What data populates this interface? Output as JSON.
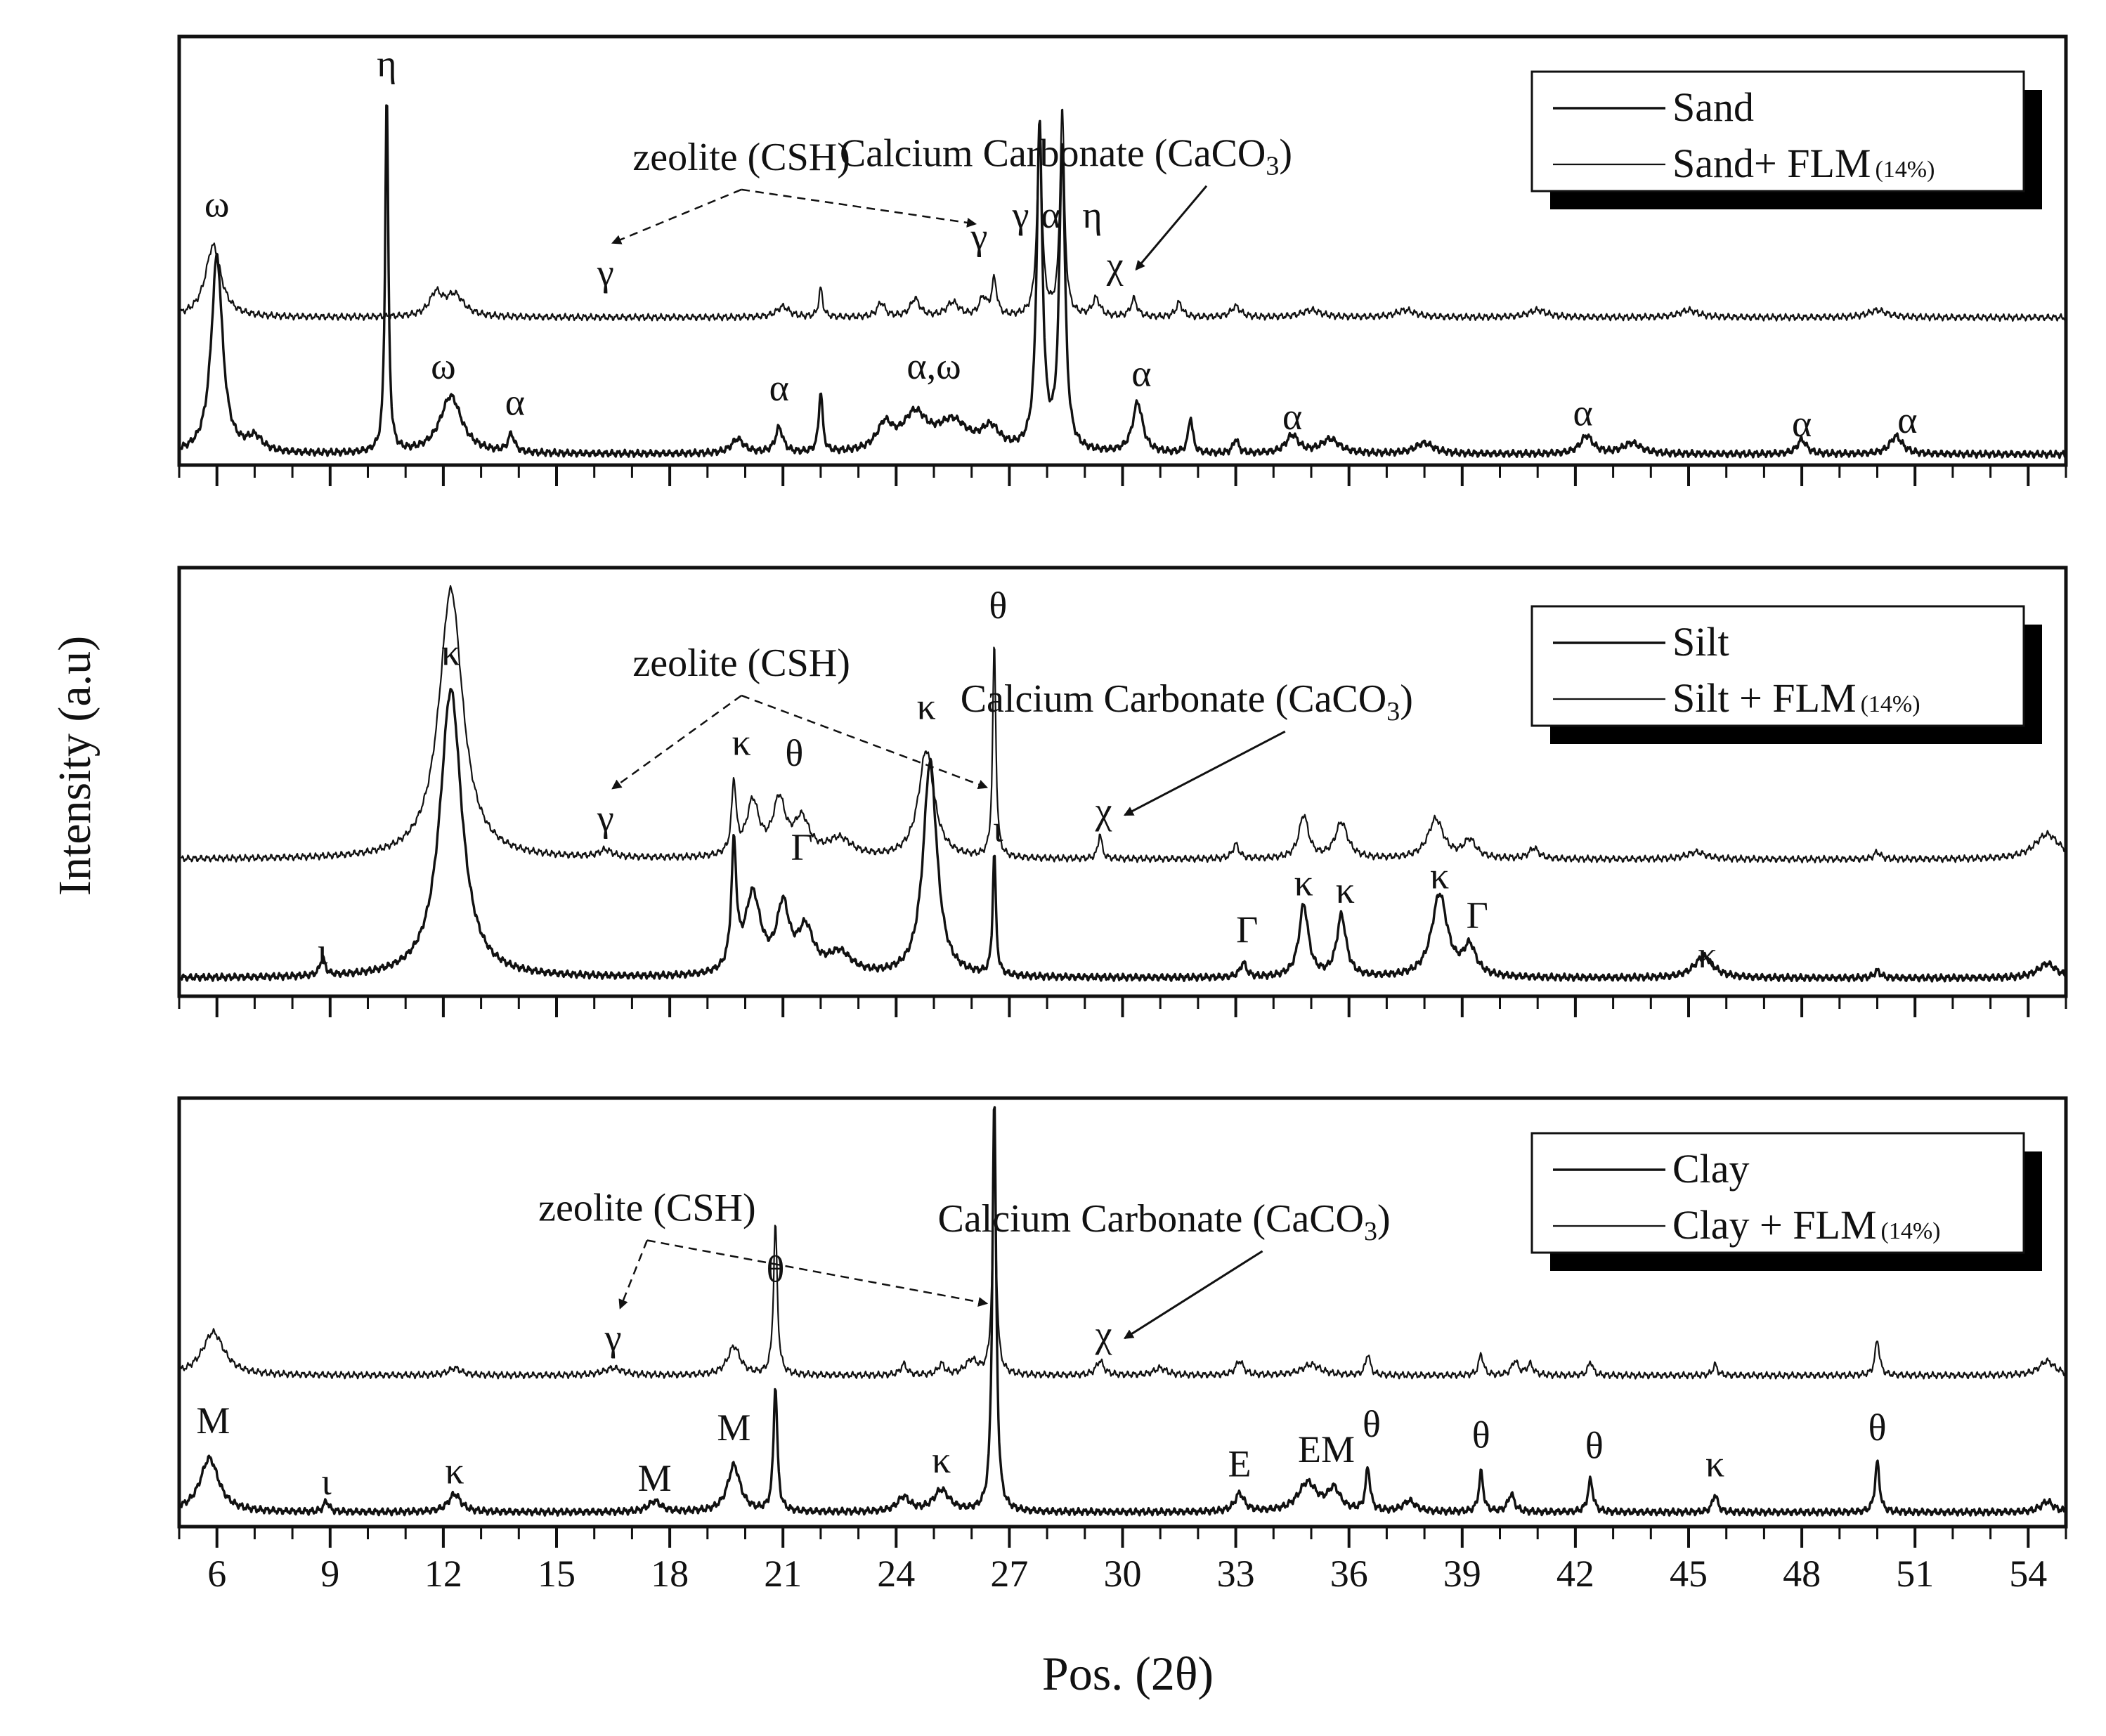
{
  "x_axis": {
    "label": "Pos. (2θ)",
    "range": [
      5,
      55
    ],
    "ticks": [
      "6",
      "9",
      "12",
      "15",
      "18",
      "21",
      "24",
      "27",
      "30",
      "33",
      "36",
      "39",
      "42",
      "45",
      "48",
      "51",
      "54"
    ]
  },
  "y_axis": {
    "label": "Intensity (a.u)"
  },
  "colors": {
    "line": "#111111",
    "background": "#ffffff"
  },
  "chart_data": [
    {
      "type": "line",
      "panel": "sand",
      "legend": {
        "position": "top-right",
        "entries": [
          "Sand",
          "Sand+ FLM",
          "(14%)"
        ]
      },
      "series": [
        {
          "name": "Sand",
          "baseline": 0.03,
          "peaks": [
            [
              6.0,
              0.55,
              0.18
            ],
            [
              7.0,
              0.04,
              0.25
            ],
            [
              10.5,
              1.0,
              0.05
            ],
            [
              12.2,
              0.16,
              0.35
            ],
            [
              13.8,
              0.05,
              0.1
            ],
            [
              19.8,
              0.04,
              0.2
            ],
            [
              20.9,
              0.07,
              0.12
            ],
            [
              22.0,
              0.17,
              0.06
            ],
            [
              23.7,
              0.07,
              0.25
            ],
            [
              24.5,
              0.1,
              0.4
            ],
            [
              25.5,
              0.08,
              0.5
            ],
            [
              26.5,
              0.06,
              0.3
            ],
            [
              27.8,
              0.9,
              0.09
            ],
            [
              28.4,
              0.85,
              0.09
            ],
            [
              30.4,
              0.14,
              0.16
            ],
            [
              31.8,
              0.1,
              0.07
            ],
            [
              33.0,
              0.04,
              0.08
            ],
            [
              34.5,
              0.05,
              0.2
            ],
            [
              35.5,
              0.04,
              0.3
            ],
            [
              38.0,
              0.03,
              0.3
            ],
            [
              42.3,
              0.05,
              0.2
            ],
            [
              43.5,
              0.03,
              0.3
            ],
            [
              48.0,
              0.04,
              0.15
            ],
            [
              50.5,
              0.05,
              0.2
            ]
          ]
        },
        {
          "name": "Sand+ FLM",
          "baseline": 0.41,
          "peaks": [
            [
              5.9,
              0.2,
              0.25
            ],
            [
              11.8,
              0.06,
              0.2
            ],
            [
              12.3,
              0.06,
              0.3
            ],
            [
              21.0,
              0.03,
              0.2
            ],
            [
              22.0,
              0.08,
              0.06
            ],
            [
              23.6,
              0.04,
              0.12
            ],
            [
              24.5,
              0.05,
              0.15
            ],
            [
              25.5,
              0.04,
              0.2
            ],
            [
              26.3,
              0.05,
              0.12
            ],
            [
              26.6,
              0.1,
              0.08
            ],
            [
              27.8,
              0.5,
              0.08
            ],
            [
              28.4,
              0.58,
              0.07
            ],
            [
              29.3,
              0.05,
              0.12
            ],
            [
              30.3,
              0.05,
              0.1
            ],
            [
              31.5,
              0.04,
              0.1
            ],
            [
              33.0,
              0.03,
              0.15
            ],
            [
              35.0,
              0.02,
              0.3
            ],
            [
              37.5,
              0.02,
              0.3
            ],
            [
              41.0,
              0.02,
              0.3
            ],
            [
              45.0,
              0.02,
              0.3
            ],
            [
              50.0,
              0.02,
              0.3
            ]
          ]
        }
      ],
      "annotations": [
        {
          "text": "ω",
          "x": 6.0,
          "y": 0.69
        },
        {
          "text": "η",
          "x": 10.5,
          "y": 1.08
        },
        {
          "text": "ω",
          "x": 12.0,
          "y": 0.24
        },
        {
          "text": "α",
          "x": 13.9,
          "y": 0.14
        },
        {
          "text": "α",
          "x": 20.9,
          "y": 0.18
        },
        {
          "text": "α,ω",
          "x": 25.0,
          "y": 0.24
        },
        {
          "text": "α",
          "x": 30.5,
          "y": 0.22
        },
        {
          "text": "α",
          "x": 34.5,
          "y": 0.1
        },
        {
          "text": "α",
          "x": 42.2,
          "y": 0.11
        },
        {
          "text": "α",
          "x": 48.0,
          "y": 0.08
        },
        {
          "text": "α",
          "x": 50.8,
          "y": 0.09
        },
        {
          "text": "γ",
          "x": 16.3,
          "y": 0.5
        },
        {
          "text": "γ",
          "x": 26.2,
          "y": 0.6
        },
        {
          "text": "γ",
          "x": 27.3,
          "y": 0.66
        },
        {
          "text": "α",
          "x": 28.1,
          "y": 0.66
        },
        {
          "text": "η",
          "x": 29.2,
          "y": 0.66
        },
        {
          "text": "χ",
          "x": 29.8,
          "y": 0.52
        },
        {
          "text": "zeolite (CSH)",
          "x": 19.9,
          "y": 0.82
        },
        {
          "text": "Calcium Carbonate (CaCO",
          "x": 28.5,
          "y": 0.83,
          "sub": "3",
          "close": ")"
        }
      ]
    },
    {
      "type": "line",
      "panel": "silt",
      "legend": {
        "position": "top-right",
        "entries": [
          "Silt",
          "Silt + FLM",
          "(14%)"
        ]
      },
      "series": [
        {
          "name": "Silt",
          "baseline": 0.05,
          "peaks": [
            [
              8.8,
              0.05,
              0.08
            ],
            [
              12.2,
              0.8,
              0.35
            ],
            [
              19.7,
              0.34,
              0.08
            ],
            [
              20.2,
              0.22,
              0.25
            ],
            [
              21.0,
              0.18,
              0.2
            ],
            [
              21.6,
              0.12,
              0.25
            ],
            [
              22.5,
              0.06,
              0.4
            ],
            [
              24.9,
              0.6,
              0.22
            ],
            [
              26.6,
              0.34,
              0.05
            ],
            [
              33.2,
              0.04,
              0.1
            ],
            [
              34.8,
              0.2,
              0.15
            ],
            [
              35.8,
              0.17,
              0.15
            ],
            [
              38.4,
              0.23,
              0.25
            ],
            [
              39.2,
              0.08,
              0.2
            ],
            [
              45.4,
              0.06,
              0.3
            ],
            [
              50.0,
              0.02,
              0.1
            ],
            [
              54.5,
              0.04,
              0.3
            ]
          ]
        },
        {
          "name": "Silt + FLM",
          "baseline": 0.38,
          "peaks": [
            [
              12.2,
              0.75,
              0.38
            ],
            [
              16.3,
              0.02,
              0.2
            ],
            [
              19.7,
              0.2,
              0.07
            ],
            [
              20.2,
              0.15,
              0.2
            ],
            [
              20.9,
              0.15,
              0.2
            ],
            [
              21.5,
              0.1,
              0.25
            ],
            [
              22.5,
              0.05,
              0.4
            ],
            [
              24.8,
              0.3,
              0.25
            ],
            [
              26.6,
              0.6,
              0.05
            ],
            [
              29.4,
              0.07,
              0.06
            ],
            [
              33.0,
              0.04,
              0.1
            ],
            [
              34.8,
              0.12,
              0.15
            ],
            [
              35.8,
              0.1,
              0.2
            ],
            [
              38.3,
              0.11,
              0.25
            ],
            [
              39.2,
              0.05,
              0.2
            ],
            [
              40.9,
              0.03,
              0.15
            ],
            [
              45.2,
              0.02,
              0.3
            ],
            [
              50.0,
              0.02,
              0.1
            ],
            [
              54.5,
              0.07,
              0.4
            ]
          ]
        }
      ],
      "annotations": [
        {
          "text": "κ",
          "x": 12.2,
          "y": 0.92
        },
        {
          "text": "ι",
          "x": 8.8,
          "y": 0.09
        },
        {
          "text": "κ",
          "x": 19.9,
          "y": 0.67
        },
        {
          "text": "θ",
          "x": 21.3,
          "y": 0.64
        },
        {
          "text": "Γ",
          "x": 21.5,
          "y": 0.38
        },
        {
          "text": "κ",
          "x": 24.8,
          "y": 0.77
        },
        {
          "text": "θ",
          "x": 26.7,
          "y": 1.05
        },
        {
          "text": "ι",
          "x": 26.7,
          "y": 0.43
        },
        {
          "text": "χ",
          "x": 29.5,
          "y": 0.48
        },
        {
          "text": "γ",
          "x": 16.3,
          "y": 0.46
        },
        {
          "text": "Γ",
          "x": 33.3,
          "y": 0.15
        },
        {
          "text": "κ",
          "x": 34.8,
          "y": 0.28
        },
        {
          "text": "κ",
          "x": 35.9,
          "y": 0.26
        },
        {
          "text": "κ",
          "x": 38.4,
          "y": 0.3
        },
        {
          "text": "Γ",
          "x": 39.4,
          "y": 0.19
        },
        {
          "text": "κ",
          "x": 45.5,
          "y": 0.08
        },
        {
          "text": "zeolite (CSH)",
          "x": 19.9,
          "y": 0.89
        },
        {
          "text": "Calcium Carbonate (CaCO",
          "x": 31.7,
          "y": 0.79,
          "sub": "3",
          "close": ")"
        }
      ]
    },
    {
      "type": "line",
      "panel": "clay",
      "legend": {
        "position": "top-right",
        "entries": [
          "Clay",
          "Clay + FLM",
          "(14%)"
        ]
      },
      "series": [
        {
          "name": "Clay",
          "baseline": 0.04,
          "peaks": [
            [
              5.8,
              0.15,
              0.3
            ],
            [
              8.9,
              0.03,
              0.08
            ],
            [
              12.3,
              0.05,
              0.2
            ],
            [
              17.6,
              0.03,
              0.2
            ],
            [
              19.7,
              0.13,
              0.2
            ],
            [
              20.8,
              0.35,
              0.06
            ],
            [
              24.2,
              0.04,
              0.2
            ],
            [
              25.2,
              0.06,
              0.25
            ],
            [
              26.6,
              1.15,
              0.06
            ],
            [
              33.1,
              0.05,
              0.15
            ],
            [
              34.9,
              0.08,
              0.3
            ],
            [
              35.6,
              0.06,
              0.2
            ],
            [
              36.5,
              0.12,
              0.07
            ],
            [
              37.6,
              0.03,
              0.2
            ],
            [
              39.5,
              0.11,
              0.07
            ],
            [
              40.3,
              0.05,
              0.1
            ],
            [
              42.4,
              0.09,
              0.08
            ],
            [
              45.7,
              0.05,
              0.08
            ],
            [
              50.0,
              0.14,
              0.07
            ],
            [
              54.5,
              0.03,
              0.2
            ]
          ]
        },
        {
          "name": "Clay + FLM",
          "baseline": 0.42,
          "peaks": [
            [
              5.9,
              0.12,
              0.35
            ],
            [
              12.3,
              0.02,
              0.2
            ],
            [
              16.5,
              0.02,
              0.3
            ],
            [
              19.7,
              0.08,
              0.2
            ],
            [
              20.8,
              0.42,
              0.06
            ],
            [
              24.2,
              0.03,
              0.1
            ],
            [
              25.2,
              0.03,
              0.1
            ],
            [
              26.0,
              0.04,
              0.2
            ],
            [
              26.6,
              0.6,
              0.06
            ],
            [
              29.4,
              0.04,
              0.12
            ],
            [
              31.0,
              0.02,
              0.2
            ],
            [
              33.1,
              0.04,
              0.12
            ],
            [
              35.0,
              0.03,
              0.3
            ],
            [
              36.5,
              0.06,
              0.07
            ],
            [
              39.5,
              0.06,
              0.07
            ],
            [
              40.4,
              0.04,
              0.1
            ],
            [
              40.8,
              0.03,
              0.1
            ],
            [
              42.4,
              0.04,
              0.07
            ],
            [
              45.7,
              0.03,
              0.07
            ],
            [
              50.0,
              0.1,
              0.07
            ],
            [
              54.5,
              0.04,
              0.25
            ]
          ]
        }
      ],
      "annotations": [
        {
          "text": "M",
          "x": 5.9,
          "y": 0.26
        },
        {
          "text": "ι",
          "x": 8.9,
          "y": 0.09
        },
        {
          "text": "κ",
          "x": 12.3,
          "y": 0.12
        },
        {
          "text": "M",
          "x": 17.6,
          "y": 0.1
        },
        {
          "text": "M",
          "x": 19.7,
          "y": 0.24
        },
        {
          "text": "θ",
          "x": 20.8,
          "y": 0.68
        },
        {
          "text": "γ",
          "x": 16.5,
          "y": 0.49
        },
        {
          "text": "κ",
          "x": 25.2,
          "y": 0.15
        },
        {
          "text": "χ",
          "x": 29.5,
          "y": 0.5
        },
        {
          "text": "E",
          "x": 33.1,
          "y": 0.14
        },
        {
          "text": "EM",
          "x": 35.4,
          "y": 0.18
        },
        {
          "text": "θ",
          "x": 36.6,
          "y": 0.25
        },
        {
          "text": "θ",
          "x": 39.5,
          "y": 0.22
        },
        {
          "text": "θ",
          "x": 42.5,
          "y": 0.19
        },
        {
          "text": "κ",
          "x": 45.7,
          "y": 0.14
        },
        {
          "text": "θ",
          "x": 50.0,
          "y": 0.24
        },
        {
          "text": "zeolite (CSH)",
          "x": 17.4,
          "y": 0.85
        },
        {
          "text": "Calcium Carbonate (CaCO",
          "x": 31.1,
          "y": 0.82,
          "sub": "3",
          "close": ")"
        }
      ]
    }
  ]
}
